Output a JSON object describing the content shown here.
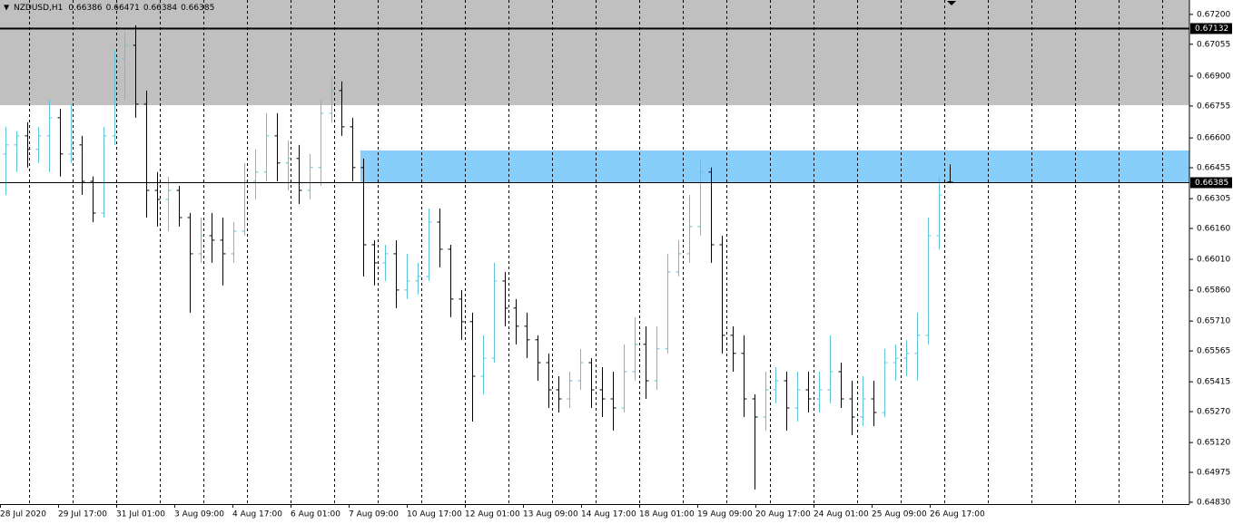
{
  "chart_data": {
    "type": "ohlc",
    "title": "NZDUSD,H1",
    "up_color": "#5ec3d6",
    "down_color": "#000000",
    "grid": true,
    "ylim": [
      0.64821,
      0.6727
    ],
    "yticks": [
      {
        "value": 0.672,
        "label": "0.67200"
      },
      {
        "value": 0.67055,
        "label": "0.67055"
      },
      {
        "value": 0.669,
        "label": "0.66900"
      },
      {
        "value": 0.66755,
        "label": "0.66755"
      },
      {
        "value": 0.666,
        "label": "0.66600"
      },
      {
        "value": 0.66455,
        "label": "0.66455"
      },
      {
        "value": 0.66305,
        "label": "0.66305"
      },
      {
        "value": 0.6616,
        "label": "0.66160"
      },
      {
        "value": 0.6601,
        "label": "0.66010"
      },
      {
        "value": 0.6586,
        "label": "0.65860"
      },
      {
        "value": 0.6571,
        "label": "0.65710"
      },
      {
        "value": 0.65565,
        "label": "0.65565"
      },
      {
        "value": 0.65415,
        "label": "0.65415"
      },
      {
        "value": 0.6527,
        "label": "0.65270"
      },
      {
        "value": 0.6512,
        "label": "0.65120"
      },
      {
        "value": 0.64975,
        "label": "0.64975"
      },
      {
        "value": 0.6483,
        "label": "0.64830"
      }
    ],
    "x_labels": [
      "28 Jul 2020",
      "29 Jul 17:00",
      "31 Jul 01:00",
      "3 Aug 09:00",
      "4 Aug 17:00",
      "6 Aug 01:00",
      "7 Aug 09:00",
      "10 Aug 17:00",
      "12 Aug 01:00",
      "13 Aug 09:00",
      "14 Aug 17:00",
      "18 Aug 01:00",
      "19 Aug 09:00",
      "20 Aug 17:00",
      "24 Aug 01:00",
      "25 Aug 09:00",
      "26 Aug 17:00"
    ],
    "levels": [
      {
        "value": 0.67132,
        "width": 2
      },
      {
        "value": 0.66385,
        "width": 1
      }
    ],
    "zones": [
      {
        "low": 0.66759,
        "color": "#c0c0c0"
      },
      {
        "low": 0.66385,
        "high": 0.66539,
        "color": "#87cefa"
      }
    ],
    "open": [
      0.66522,
      0.66566,
      0.6661,
      0.66544,
      0.6661,
      0.66698,
      0.66522,
      0.66566,
      0.66389,
      0.66235,
      0.6661,
      0.66984,
      0.6705,
      0.66764,
      0.66345,
      0.66301,
      0.66345,
      0.66213,
      0.66037,
      0.66125,
      0.66103,
      0.66037,
      0.66147,
      0.66389,
      0.66434,
      0.6661,
      0.66478,
      0.665,
      0.66345,
      0.66456,
      0.6672,
      0.6683,
      0.66654,
      0.66456,
      0.66081,
      0.65993,
      0.66037,
      0.65861,
      0.65905,
      0.65927,
      0.66191,
      0.66059,
      0.65817,
      0.65707,
      0.65442,
      0.6553,
      0.65905,
      0.65773,
      0.65685,
      0.65619,
      0.65508,
      0.65376,
      0.65332,
      0.6542,
      0.65508,
      0.65376,
      0.65332,
      0.65288,
      0.65464,
      0.65597,
      0.6542,
      0.65575,
      0.65949,
      0.66037,
      0.66169,
      0.66434,
      0.66081,
      0.65641,
      0.65553,
      0.65332,
      0.65244,
      0.65376,
      0.6542,
      0.65288,
      0.65376,
      0.65332,
      0.65376,
      0.65464,
      0.65332,
      0.65244,
      0.65332,
      0.65266,
      0.65508,
      0.6553,
      0.65553,
      0.65641,
      0.66125,
      0.66386
    ],
    "high": [
      0.66654,
      0.66632,
      0.66676,
      0.66654,
      0.66786,
      0.66742,
      0.66764,
      0.6661,
      0.66412,
      0.66654,
      0.67028,
      0.67116,
      0.67147,
      0.6683,
      0.66434,
      0.66412,
      0.66367,
      0.66235,
      0.66213,
      0.66235,
      0.66213,
      0.66191,
      0.66478,
      0.66544,
      0.6672,
      0.6672,
      0.66588,
      0.66566,
      0.66522,
      0.66786,
      0.66896,
      0.66874,
      0.66698,
      0.665,
      0.66103,
      0.66081,
      0.66103,
      0.66037,
      0.65993,
      0.66257,
      0.66257,
      0.66081,
      0.65861,
      0.65751,
      0.65641,
      0.65993,
      0.65949,
      0.65817,
      0.65751,
      0.65641,
      0.65553,
      0.65442,
      0.65464,
      0.65575,
      0.6553,
      0.65486,
      0.65464,
      0.65597,
      0.65729,
      0.65685,
      0.65685,
      0.66037,
      0.66103,
      0.66323,
      0.665,
      0.66456,
      0.66125,
      0.65685,
      0.65641,
      0.65354,
      0.65464,
      0.65486,
      0.65464,
      0.65464,
      0.65464,
      0.65464,
      0.65641,
      0.65508,
      0.6542,
      0.65442,
      0.6542,
      0.65575,
      0.65597,
      0.65619,
      0.65751,
      0.66213,
      0.66412,
      0.66471
    ],
    "low": [
      0.66323,
      0.66434,
      0.66456,
      0.66478,
      0.66434,
      0.66412,
      0.66478,
      0.66323,
      0.66191,
      0.66213,
      0.66566,
      0.66786,
      0.66698,
      0.66213,
      0.66169,
      0.66147,
      0.66169,
      0.65751,
      0.65993,
      0.65993,
      0.65883,
      0.65993,
      0.66125,
      0.66301,
      0.66389,
      0.66389,
      0.66345,
      0.66279,
      0.66301,
      0.66367,
      0.66676,
      0.6661,
      0.66389,
      0.65927,
      0.65883,
      0.65905,
      0.65773,
      0.65817,
      0.65839,
      0.65905,
      0.65971,
      0.65729,
      0.65619,
      0.65222,
      0.65354,
      0.65508,
      0.65685,
      0.65597,
      0.6553,
      0.6542,
      0.65288,
      0.65266,
      0.65288,
      0.65376,
      0.65288,
      0.65244,
      0.65178,
      0.65266,
      0.6542,
      0.65332,
      0.65376,
      0.65553,
      0.65927,
      0.65993,
      0.66125,
      0.65993,
      0.65553,
      0.65464,
      0.65244,
      0.64892,
      0.65178,
      0.6531,
      0.65178,
      0.65222,
      0.65266,
      0.65266,
      0.6531,
      0.65288,
      0.65156,
      0.652,
      0.652,
      0.65244,
      0.6542,
      0.65442,
      0.6542,
      0.65597,
      0.66059,
      0.66384
    ],
    "close": [
      0.66566,
      0.6661,
      0.66544,
      0.6661,
      0.66698,
      0.66522,
      0.66566,
      0.66389,
      0.66235,
      0.6661,
      0.66984,
      0.6705,
      0.66764,
      0.66345,
      0.66301,
      0.66345,
      0.66213,
      0.66037,
      0.66125,
      0.66103,
      0.66037,
      0.66147,
      0.66389,
      0.66434,
      0.6661,
      0.66478,
      0.665,
      0.66345,
      0.66456,
      0.6672,
      0.6683,
      0.66654,
      0.66456,
      0.66081,
      0.65993,
      0.66037,
      0.65861,
      0.65905,
      0.65927,
      0.66191,
      0.66059,
      0.65817,
      0.65707,
      0.65442,
      0.6553,
      0.65905,
      0.65773,
      0.65685,
      0.65619,
      0.65508,
      0.65376,
      0.65332,
      0.6542,
      0.65508,
      0.65376,
      0.65332,
      0.65288,
      0.65464,
      0.65597,
      0.6542,
      0.65575,
      0.65949,
      0.66037,
      0.66169,
      0.66434,
      0.66081,
      0.65641,
      0.65553,
      0.65332,
      0.65244,
      0.65376,
      0.6542,
      0.65288,
      0.65376,
      0.65332,
      0.65376,
      0.65464,
      0.65332,
      0.65244,
      0.65332,
      0.65266,
      0.65508,
      0.6553,
      0.65553,
      0.65641,
      0.66125,
      0.66323,
      0.66385
    ]
  }
}
